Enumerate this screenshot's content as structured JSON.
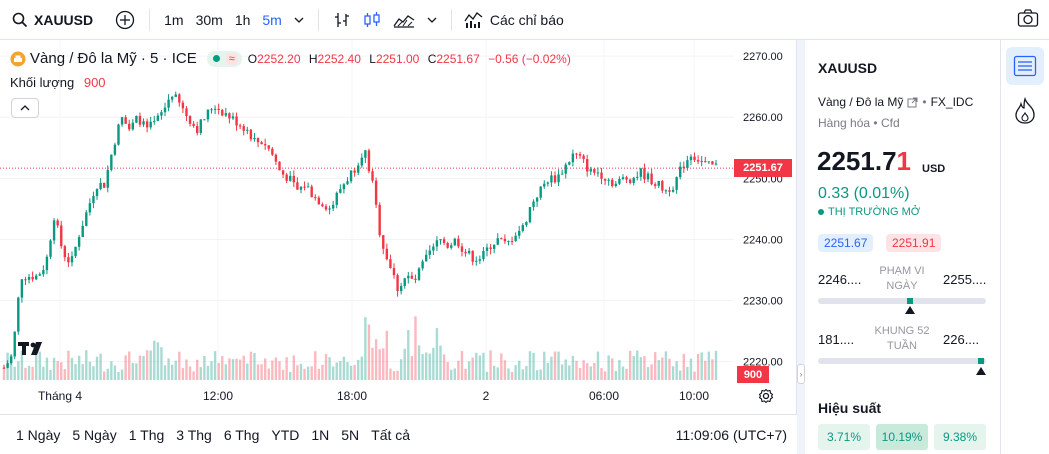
{
  "topbar": {
    "symbol": "XAUUSD",
    "timeframes": [
      "1m",
      "30m",
      "1h",
      "5m"
    ],
    "indicators_label": "Các chỉ báo"
  },
  "legend": {
    "title": "Vàng / Đô la Mỹ · 5 · ICE",
    "o_key": "O",
    "o_val": "2252.20",
    "h_key": "H",
    "h_val": "2252.40",
    "l_key": "L",
    "l_val": "2251.00",
    "c_key": "C",
    "c_val": "2251.67",
    "change": "−0.56 (−0.02%)",
    "volume_label": "Khối lượng",
    "volume_value": "900"
  },
  "chart_data": {
    "type": "candlestick",
    "title": "Vàng / Đô la Mỹ · 5 · ICE",
    "y_ticks": [
      "2270.00",
      "2260.00",
      "2250.00",
      "2240.00",
      "2230.00",
      "2220.00"
    ],
    "ylim": [
      2217,
      2271
    ],
    "x_ticks": [
      "Tháng 4",
      "12:00",
      "18:00",
      "2",
      "06:00",
      "10:00"
    ],
    "last_price": 2251.67,
    "last_price_label": "2251.67",
    "last_volume_label": "900",
    "close_path": [
      2219,
      2221,
      2234,
      2234,
      2234,
      2236,
      2244,
      2238,
      2236,
      2241,
      2245,
      2249,
      2249,
      2255,
      2260,
      2258,
      2260,
      2258,
      2259,
      2261,
      2264,
      2262,
      2260,
      2258,
      2260,
      2262,
      2261,
      2260,
      2259,
      2258,
      2256,
      2256,
      2254,
      2251,
      2250,
      2248,
      2249,
      2247,
      2246,
      2245,
      2248,
      2250,
      2252,
      2255,
      2249,
      2240,
      2236,
      2232,
      2234,
      2233,
      2236,
      2238,
      2240,
      2239,
      2240,
      2238,
      2237,
      2237,
      2239,
      2240,
      2239,
      2241,
      2242,
      2246,
      2248,
      2250,
      2250,
      2252,
      2254,
      2253,
      2251,
      2251,
      2250,
      2249,
      2250,
      2250,
      2251,
      2250,
      2249,
      2248,
      2249,
      2252,
      2254,
      2253,
      2252,
      2252
    ]
  },
  "panel": {
    "symbol": "XAUUSD",
    "description": "Vàng / Đô la Mỹ",
    "exchange": "FX_IDC",
    "category": "Hàng hóa",
    "type": "Cfd",
    "price_main": "2251.7",
    "price_last_digit": "1",
    "currency": "USD",
    "change": "0.33 (0.01%)",
    "market_status": "THỊ TRƯỜNG MỞ",
    "bid": "2251.67",
    "ask": "2251.91",
    "day_low": "2246....",
    "day_high": "2255....",
    "day_range_label": "PHẠM VI NGÀY",
    "day_range_position": 0.55,
    "wk52_low": "181....",
    "wk52_high": "226....",
    "wk52_label": "KHUNG 52 TUẦN",
    "wk52_position": 0.97,
    "performance_title": "Hiệu suất",
    "performance": [
      "3.71%",
      "10.19%",
      "9.38%"
    ]
  },
  "bottombar": {
    "ranges": [
      "1 Ngày",
      "5 Ngày",
      "1 Thg",
      "3 Thg",
      "6 Thg",
      "YTD",
      "1N",
      "5N",
      "Tất cả"
    ],
    "clock": "11:09:06 (UTC+7)"
  },
  "icons": {
    "search": "search-icon",
    "add": "plus-circle-icon",
    "chevron": "chevron-down-icon",
    "bar_type": "bar-style-icon",
    "candle": "candles-icon",
    "area": "area-chart-icon",
    "indicators": "indicators-icon",
    "camera": "camera-icon",
    "settings": "gear-icon",
    "watchlist": "watchlist-icon",
    "hotlist": "flame-icon"
  },
  "colors": {
    "up": "#089981",
    "down": "#f23645",
    "accent": "#2962ff"
  }
}
